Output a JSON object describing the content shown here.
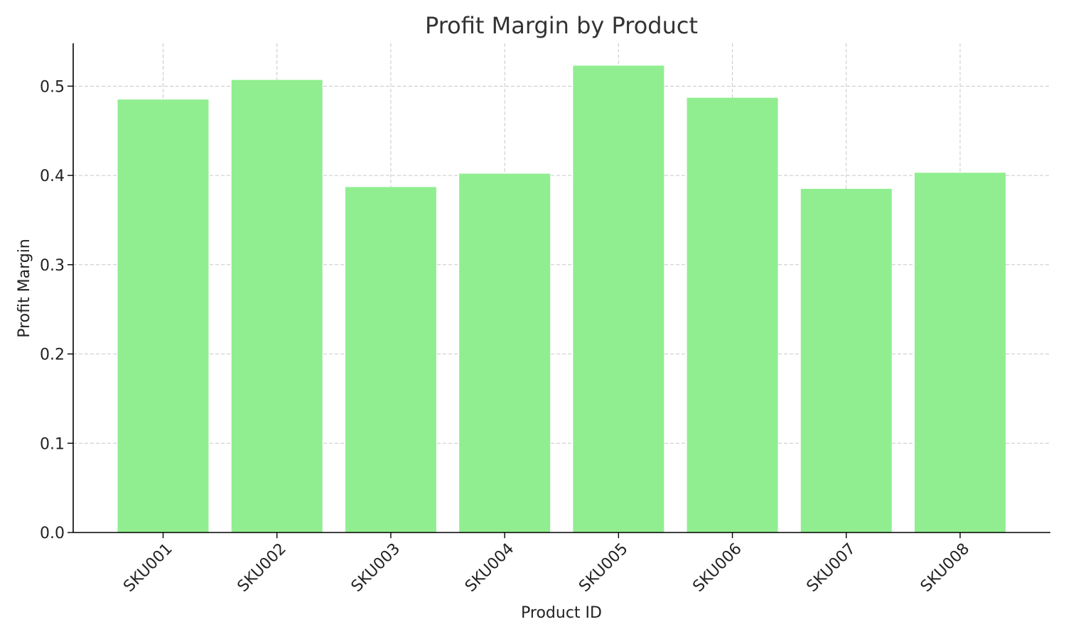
{
  "chart_data": {
    "type": "bar",
    "title": "Profit Margin by Product",
    "xlabel": "Product ID",
    "ylabel": "Profit Margin",
    "categories": [
      "SKU001",
      "SKU002",
      "SKU003",
      "SKU004",
      "SKU005",
      "SKU006",
      "SKU007",
      "SKU008"
    ],
    "values": [
      0.485,
      0.507,
      0.387,
      0.402,
      0.523,
      0.487,
      0.385,
      0.403
    ],
    "ylim": [
      0,
      0.548
    ],
    "yticks": [
      0.0,
      0.1,
      0.2,
      0.3,
      0.4,
      0.5
    ],
    "ytick_labels": [
      "0.0",
      "0.1",
      "0.2",
      "0.3",
      "0.4",
      "0.5"
    ],
    "grid": true,
    "bar_color": "#90ee90",
    "legend": null
  }
}
